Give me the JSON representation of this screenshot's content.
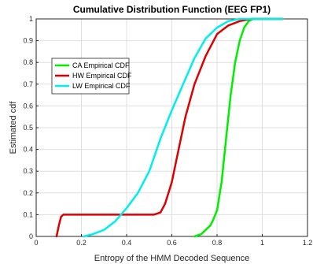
{
  "chart_data": {
    "type": "line",
    "title": "Cumulative Distribution Function (EEG FP1)",
    "xlabel": "Entropy of the HMM Decoded Sequence",
    "ylabel": "Estimated cdf",
    "xlim": [
      0,
      1.2
    ],
    "ylim": [
      0,
      1
    ],
    "xticks": [
      "0",
      "0.2",
      "0.4",
      "0.6",
      "0.8",
      "1",
      "1.2"
    ],
    "yticks": [
      "0",
      "0.1",
      "0.2",
      "0.3",
      "0.4",
      "0.5",
      "0.6",
      "0.7",
      "0.8",
      "0.9",
      "1"
    ],
    "grid": true,
    "legend_position": "upper-left",
    "series": [
      {
        "name": "CA Empirical CDF",
        "color": "#00ee00",
        "points": [
          [
            0.7,
            0.0
          ],
          [
            0.73,
            0.01
          ],
          [
            0.75,
            0.03
          ],
          [
            0.77,
            0.05
          ],
          [
            0.78,
            0.07
          ],
          [
            0.8,
            0.12
          ],
          [
            0.82,
            0.25
          ],
          [
            0.84,
            0.45
          ],
          [
            0.86,
            0.65
          ],
          [
            0.88,
            0.8
          ],
          [
            0.9,
            0.9
          ],
          [
            0.92,
            0.96
          ],
          [
            0.94,
            0.99
          ],
          [
            0.96,
            1.0
          ],
          [
            1.09,
            1.0
          ]
        ]
      },
      {
        "name": "HW Empirical CDF",
        "color": "#dd0000",
        "points": [
          [
            0.09,
            0.0
          ],
          [
            0.1,
            0.05
          ],
          [
            0.11,
            0.09
          ],
          [
            0.12,
            0.1
          ],
          [
            0.52,
            0.1
          ],
          [
            0.55,
            0.11
          ],
          [
            0.57,
            0.15
          ],
          [
            0.6,
            0.25
          ],
          [
            0.63,
            0.4
          ],
          [
            0.66,
            0.55
          ],
          [
            0.7,
            0.7
          ],
          [
            0.75,
            0.83
          ],
          [
            0.8,
            0.93
          ],
          [
            0.85,
            0.97
          ],
          [
            0.9,
            0.99
          ],
          [
            0.95,
            1.0
          ],
          [
            1.09,
            1.0
          ]
        ]
      },
      {
        "name": "LW Empirical CDF",
        "color": "#00eeee",
        "points": [
          [
            0.21,
            0.0
          ],
          [
            0.25,
            0.01
          ],
          [
            0.3,
            0.03
          ],
          [
            0.35,
            0.07
          ],
          [
            0.4,
            0.13
          ],
          [
            0.45,
            0.2
          ],
          [
            0.5,
            0.3
          ],
          [
            0.55,
            0.45
          ],
          [
            0.6,
            0.58
          ],
          [
            0.65,
            0.7
          ],
          [
            0.7,
            0.82
          ],
          [
            0.75,
            0.91
          ],
          [
            0.8,
            0.96
          ],
          [
            0.85,
            0.99
          ],
          [
            0.9,
            1.0
          ],
          [
            1.09,
            1.0
          ]
        ]
      }
    ]
  }
}
